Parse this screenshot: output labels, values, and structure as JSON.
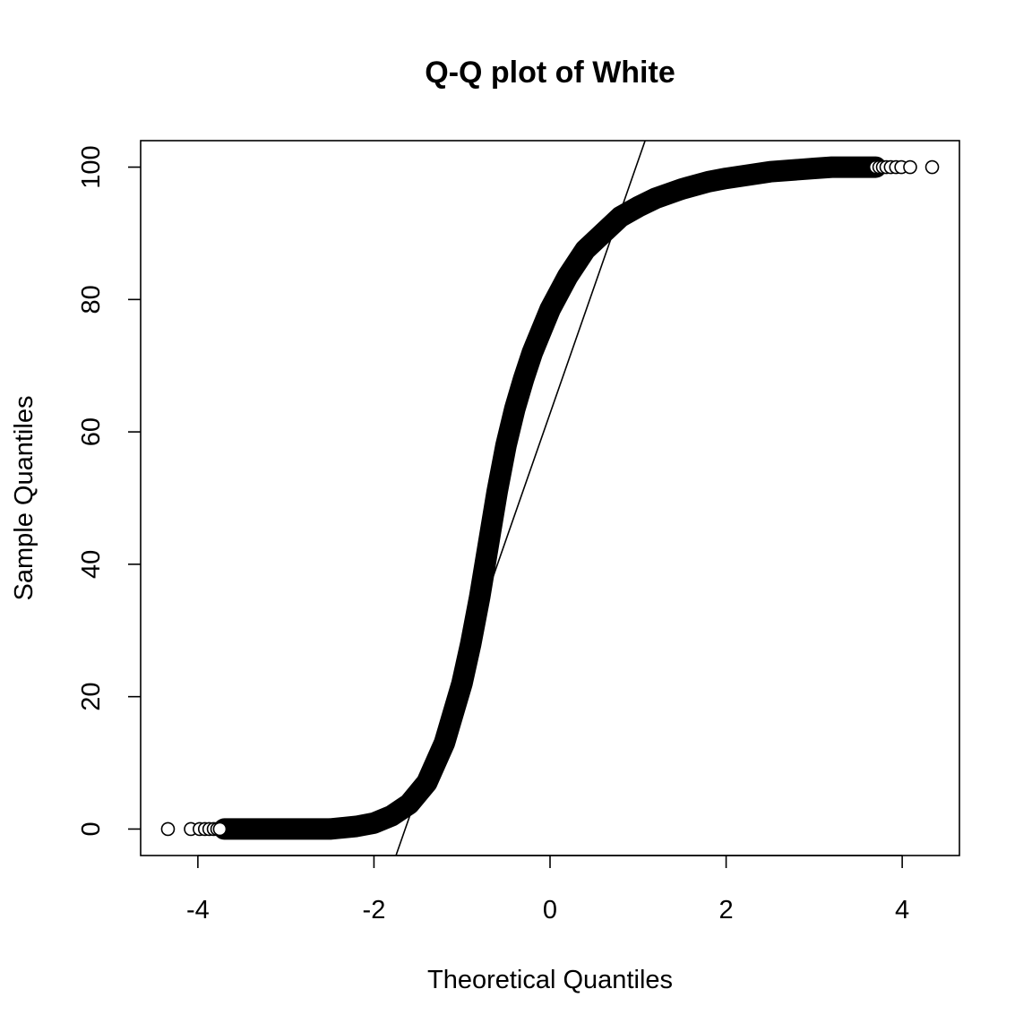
{
  "chart_data": {
    "type": "scatter",
    "title": "Q-Q plot of White",
    "xlabel": "Theoretical Quantiles",
    "ylabel": "Sample Quantiles",
    "xlim": [
      -4.65,
      4.65
    ],
    "ylim": [
      -4,
      104
    ],
    "x_ticks": [
      "-4",
      "-2",
      "0",
      "2",
      "4"
    ],
    "y_ticks": [
      "0",
      "20",
      "40",
      "60",
      "80",
      "100"
    ],
    "grid": false,
    "legend": "none",
    "reference_line": {
      "points": [
        [
          -1.75,
          -4
        ],
        [
          1.08,
          104
        ]
      ]
    },
    "curve_points": [
      [
        -3.7,
        0
      ],
      [
        -3.0,
        0
      ],
      [
        -2.5,
        0
      ],
      [
        -2.2,
        0.4
      ],
      [
        -2.0,
        0.9
      ],
      [
        -1.8,
        2.0
      ],
      [
        -1.6,
        3.8
      ],
      [
        -1.4,
        7.0
      ],
      [
        -1.2,
        13.0
      ],
      [
        -1.0,
        22.0
      ],
      [
        -0.9,
        28.0
      ],
      [
        -0.8,
        35.0
      ],
      [
        -0.7,
        43.0
      ],
      [
        -0.6,
        51.0
      ],
      [
        -0.5,
        58.0
      ],
      [
        -0.4,
        63.5
      ],
      [
        -0.3,
        68.0
      ],
      [
        -0.2,
        72.0
      ],
      [
        0.0,
        78.5
      ],
      [
        0.2,
        83.5
      ],
      [
        0.4,
        87.5
      ],
      [
        0.6,
        90.0
      ],
      [
        0.8,
        92.5
      ],
      [
        1.0,
        94.0
      ],
      [
        1.2,
        95.3
      ],
      [
        1.5,
        96.7
      ],
      [
        1.8,
        97.8
      ],
      [
        2.0,
        98.3
      ],
      [
        2.5,
        99.3
      ],
      [
        3.0,
        99.8
      ],
      [
        3.2,
        100
      ],
      [
        3.7,
        100
      ]
    ],
    "tail_points": [
      [
        -4.34,
        0
      ],
      [
        -4.08,
        0
      ],
      [
        -3.98,
        0
      ],
      [
        -3.92,
        0
      ],
      [
        -3.87,
        0
      ],
      [
        -3.82,
        0
      ],
      [
        -3.78,
        0
      ],
      [
        -3.75,
        0
      ],
      [
        3.7,
        100
      ],
      [
        3.74,
        100
      ],
      [
        3.78,
        100
      ],
      [
        3.82,
        100
      ],
      [
        3.87,
        100
      ],
      [
        3.93,
        100
      ],
      [
        3.99,
        100
      ],
      [
        4.09,
        100
      ],
      [
        4.34,
        100
      ]
    ]
  }
}
